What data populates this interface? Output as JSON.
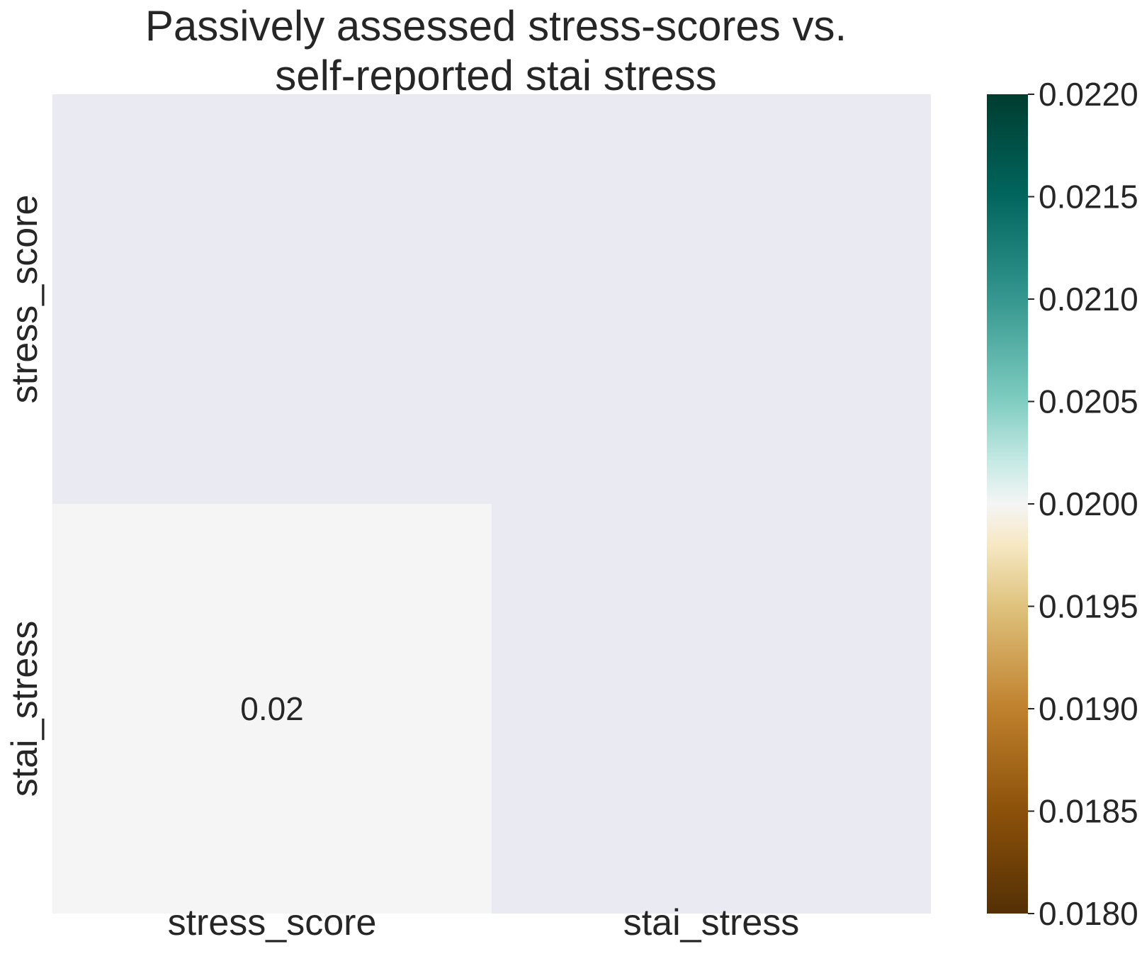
{
  "chart_data": {
    "type": "heatmap",
    "title": [
      "Passively assessed stress-scores vs.",
      "self-reported stai stress"
    ],
    "rows": [
      "stress_score",
      "stai_stress"
    ],
    "columns": [
      "stress_score",
      "stai_stress"
    ],
    "cells": [
      [
        null,
        null
      ],
      [
        0.02,
        null
      ]
    ],
    "annotations": [
      [
        null,
        null
      ],
      [
        "0.02",
        null
      ]
    ],
    "colormap": "BrBG",
    "vmin": 0.018,
    "vmax": 0.022,
    "colorbar_ticks": [
      "0.0180",
      "0.0185",
      "0.0190",
      "0.0195",
      "0.0200",
      "0.0205",
      "0.0210",
      "0.0215",
      "0.0220"
    ],
    "masked_color": "#eaeaf2",
    "grid": false
  }
}
